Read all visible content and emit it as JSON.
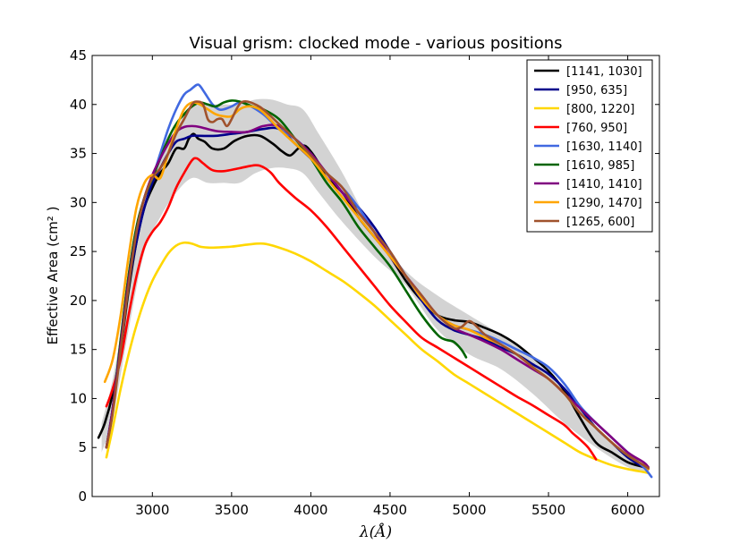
{
  "chart_data": {
    "type": "line",
    "title": "Visual grism: clocked mode - various positions",
    "xlabel": "λ(Å)",
    "ylabel": "Effective Area (cm² )",
    "xlim": [
      2620,
      6200
    ],
    "ylim": [
      0,
      45
    ],
    "x_ticks": [
      "3000",
      "3500",
      "4000",
      "4500",
      "5000",
      "5500",
      "6000"
    ],
    "y_ticks": [
      "0",
      "5",
      "10",
      "15",
      "20",
      "25",
      "30",
      "35",
      "40",
      "45"
    ],
    "legend_position": "top-right",
    "band": {
      "color": "#d3d3d3",
      "x": [
        2680,
        2750,
        2850,
        2950,
        3050,
        3150,
        3250,
        3350,
        3450,
        3550,
        3650,
        3750,
        3850,
        3950,
        4050,
        4200,
        4400,
        4600,
        4800,
        5000,
        5200,
        5400,
        5600,
        5800,
        6000,
        6130
      ],
      "upper": [
        7.5,
        12,
        21,
        29.5,
        35,
        37.5,
        40,
        40,
        40,
        40,
        40.5,
        40.5,
        40,
        39.5,
        37,
        33,
        27,
        23,
        20.5,
        18.5,
        16.5,
        14,
        11,
        7,
        4,
        3
      ],
      "lower": [
        4.5,
        8,
        17,
        25,
        28.5,
        31,
        32.5,
        32,
        32,
        32,
        33,
        33.5,
        33.5,
        33,
        31,
        28,
        24.5,
        21.5,
        17,
        14.5,
        13,
        10.5,
        7.5,
        5,
        3,
        2.5
      ]
    },
    "series": [
      {
        "name": "[1141, 1030]",
        "color": "#000000",
        "x": [
          2660,
          2700,
          2750,
          2800,
          2850,
          2900,
          2950,
          3000,
          3050,
          3100,
          3150,
          3200,
          3230,
          3260,
          3290,
          3330,
          3380,
          3450,
          3520,
          3600,
          3680,
          3760,
          3820,
          3870,
          3920,
          3960,
          4000,
          4050,
          4100,
          4200,
          4300,
          4400,
          4500,
          4600,
          4700,
          4800,
          4900,
          5000,
          5100,
          5200,
          5300,
          5400,
          5500,
          5600,
          5700,
          5800,
          5900,
          6000,
          6100,
          6130
        ],
        "y": [
          6,
          7.5,
          10.5,
          15,
          21,
          26,
          29.5,
          31.5,
          33,
          34,
          35.5,
          35.5,
          36.5,
          37,
          36.5,
          36.2,
          35.5,
          35.5,
          36.3,
          36.8,
          36.8,
          36,
          35.2,
          34.8,
          35.5,
          35.8,
          35.2,
          34,
          32.5,
          31,
          28.5,
          26.5,
          24.5,
          22,
          20,
          18.5,
          18,
          17.8,
          17.2,
          16.5,
          15.5,
          14.2,
          12.8,
          10.8,
          8,
          5.5,
          4.5,
          3.5,
          3,
          2.8
        ]
      },
      {
        "name": "[950, 635]",
        "color": "#00008b",
        "x": [
          2710,
          2750,
          2800,
          2850,
          2900,
          2950,
          3000,
          3050,
          3100,
          3150,
          3200,
          3250,
          3300,
          3400,
          3500,
          3600,
          3700,
          3800,
          3900,
          4000,
          4100,
          4200,
          4300,
          4400,
          4500,
          4600,
          4700,
          4800,
          4900,
          5000,
          5100,
          5200,
          5300,
          5400,
          5500,
          5600,
          5700,
          5800,
          5900,
          6000,
          6100,
          6130
        ],
        "y": [
          5,
          9,
          15,
          21.5,
          26,
          29.5,
          32,
          33.5,
          35,
          36.2,
          36.5,
          36.8,
          36.8,
          36.8,
          37,
          37.2,
          37.5,
          37.5,
          36,
          34.5,
          33,
          31,
          29.5,
          27.5,
          25,
          22.5,
          20,
          18,
          17,
          16.5,
          16,
          15.2,
          14.5,
          13.5,
          12.5,
          11,
          9,
          7,
          5.5,
          4,
          3,
          2.8
        ]
      },
      {
        "name": "[800, 1220]",
        "color": "#ffd700",
        "x": [
          2710,
          2750,
          2800,
          2850,
          2900,
          2950,
          3000,
          3050,
          3100,
          3150,
          3200,
          3250,
          3300,
          3350,
          3400,
          3500,
          3600,
          3700,
          3800,
          3900,
          4000,
          4100,
          4200,
          4300,
          4400,
          4500,
          4600,
          4700,
          4800,
          4900,
          5000,
          5100,
          5200,
          5300,
          5400,
          5500,
          5600,
          5700,
          5800,
          5900,
          6000,
          6100,
          6130
        ],
        "y": [
          4,
          7,
          11,
          14.5,
          17.5,
          20,
          22,
          23.5,
          24.8,
          25.6,
          25.9,
          25.8,
          25.5,
          25.4,
          25.4,
          25.5,
          25.7,
          25.8,
          25.4,
          24.8,
          24,
          23,
          22,
          20.8,
          19.5,
          18,
          16.5,
          15,
          13.8,
          12.5,
          11.5,
          10.5,
          9.5,
          8.5,
          7.5,
          6.5,
          5.5,
          4.5,
          3.8,
          3.2,
          2.8,
          2.5,
          2.4
        ]
      },
      {
        "name": "[760, 950]",
        "color": "#ff0000",
        "x": [
          2710,
          2750,
          2800,
          2850,
          2900,
          2950,
          3000,
          3050,
          3100,
          3150,
          3200,
          3250,
          3280,
          3320,
          3380,
          3450,
          3550,
          3650,
          3700,
          3750,
          3800,
          3900,
          4000,
          4100,
          4200,
          4300,
          4400,
          4500,
          4600,
          4700,
          4800,
          4900,
          5000,
          5100,
          5200,
          5300,
          5400,
          5500,
          5600,
          5650,
          5700,
          5750,
          5800
        ],
        "y": [
          9.2,
          11,
          14,
          18.5,
          22.5,
          25.5,
          27,
          28,
          29.5,
          31.5,
          33,
          34.3,
          34.5,
          34,
          33.3,
          33.2,
          33.5,
          33.8,
          33.6,
          33,
          32,
          30.5,
          29.2,
          27.5,
          25.5,
          23.5,
          21.5,
          19.5,
          17.8,
          16.2,
          15.2,
          14.2,
          13.2,
          12.2,
          11.2,
          10.2,
          9.3,
          8.3,
          7.3,
          6.5,
          5.8,
          5,
          3.8
        ]
      },
      {
        "name": "[1630, 1140]",
        "color": "#4169e1",
        "x": [
          2710,
          2750,
          2800,
          2850,
          2900,
          2950,
          3000,
          3050,
          3100,
          3150,
          3200,
          3240,
          3280,
          3300,
          3330,
          3380,
          3420,
          3450,
          3500,
          3550,
          3600,
          3700,
          3800,
          3900,
          4000,
          4100,
          4200,
          4300,
          4400,
          4500,
          4600,
          4700,
          4800,
          4900,
          5000,
          5100,
          5200,
          5300,
          5400,
          5500,
          5600,
          5700,
          5800,
          5900,
          6000,
          6100,
          6150
        ],
        "y": [
          5,
          9,
          16,
          22.5,
          27.5,
          30.5,
          32.5,
          35,
          37.5,
          39.5,
          41,
          41.5,
          42,
          41.9,
          41.2,
          40,
          39.5,
          39.5,
          39.8,
          40.2,
          40,
          39,
          37.5,
          36.5,
          35,
          33,
          31.5,
          29.5,
          27,
          24.5,
          22.5,
          20.2,
          18.5,
          17.5,
          17,
          16.5,
          15.8,
          15,
          14.2,
          13.2,
          11.5,
          9.2,
          7.5,
          6,
          4.5,
          3,
          2
        ]
      },
      {
        "name": "[1610, 985]",
        "color": "#006400",
        "x": [
          2710,
          2750,
          2800,
          2850,
          2900,
          2950,
          3000,
          3050,
          3100,
          3150,
          3200,
          3250,
          3300,
          3350,
          3400,
          3450,
          3500,
          3550,
          3600,
          3650,
          3700,
          3800,
          3900,
          4000,
          4100,
          4200,
          4300,
          4400,
          4500,
          4600,
          4700,
          4800,
          4850,
          4900,
          4950,
          4980
        ],
        "y": [
          5,
          9,
          16,
          22.5,
          27.5,
          30.5,
          32.5,
          34.5,
          36.5,
          38,
          39,
          39.8,
          40.2,
          40,
          39.8,
          40.2,
          40.4,
          40.3,
          40,
          39.7,
          39.5,
          38.5,
          36.5,
          34.5,
          32,
          30,
          27.5,
          25.5,
          23.5,
          21,
          18.5,
          16.5,
          16,
          15.8,
          15,
          14.2
        ]
      },
      {
        "name": "[1410, 1410]",
        "color": "#800080",
        "x": [
          2710,
          2750,
          2800,
          2850,
          2900,
          2950,
          3000,
          3050,
          3100,
          3150,
          3200,
          3250,
          3300,
          3400,
          3500,
          3600,
          3700,
          3800,
          3900,
          4000,
          4100,
          4200,
          4300,
          4400,
          4500,
          4600,
          4700,
          4800,
          4900,
          5000,
          5100,
          5200,
          5300,
          5400,
          5500,
          5600,
          5700,
          5800,
          5900,
          6000,
          6100,
          6130
        ],
        "y": [
          5,
          9,
          15.5,
          22,
          27,
          30.5,
          32.8,
          34.5,
          36,
          37.2,
          37.7,
          37.8,
          37.7,
          37.3,
          37.2,
          37.2,
          37.8,
          37.8,
          36.5,
          35,
          33,
          31,
          29,
          27,
          24.5,
          22.5,
          20.5,
          18.5,
          17.2,
          16.5,
          15.8,
          15,
          14,
          13,
          12,
          10.5,
          9,
          7.5,
          6,
          4.5,
          3.5,
          3
        ]
      },
      {
        "name": "[1290, 1470]",
        "color": "#ffa500",
        "x": [
          2700,
          2750,
          2800,
          2850,
          2900,
          2950,
          3000,
          3050,
          3100,
          3150,
          3200,
          3250,
          3300,
          3350,
          3400,
          3450,
          3500,
          3550,
          3600,
          3650,
          3700,
          3800,
          3900,
          4000,
          4100,
          4200,
          4300,
          4400,
          4500,
          4600,
          4700,
          4800,
          4900,
          5000,
          5100,
          5200,
          5300,
          5400,
          5500,
          5600,
          5700,
          5800,
          5900,
          6000,
          6100,
          6130
        ],
        "y": [
          11.7,
          14,
          18.5,
          24.5,
          29.5,
          32,
          32.8,
          32.5,
          35,
          37.5,
          39.5,
          40.2,
          40,
          39.5,
          39,
          38.8,
          38.8,
          39.5,
          39.8,
          39.7,
          39.2,
          37.5,
          36,
          34.5,
          32.5,
          30.5,
          28.5,
          26.5,
          24.5,
          22.5,
          20.2,
          18.5,
          17.5,
          17,
          16.2,
          15.5,
          14.5,
          13.2,
          12,
          10.5,
          8.5,
          7,
          5.5,
          4.2,
          3.2,
          2.8
        ]
      },
      {
        "name": "[1265, 600]",
        "color": "#a0522d",
        "x": [
          2710,
          2750,
          2800,
          2850,
          2900,
          2950,
          3000,
          3050,
          3100,
          3150,
          3200,
          3250,
          3280,
          3320,
          3350,
          3380,
          3410,
          3440,
          3470,
          3500,
          3530,
          3560,
          3600,
          3650,
          3700,
          3800,
          3900,
          4000,
          4100,
          4200,
          4300,
          4400,
          4500,
          4600,
          4700,
          4800,
          4900,
          4950,
          5000,
          5050,
          5100,
          5200,
          5300,
          5400,
          5500,
          5600,
          5700,
          5800,
          5900,
          6000,
          6100,
          6130
        ],
        "y": [
          5,
          8.5,
          15,
          21.5,
          27,
          30.5,
          32.5,
          33.5,
          35,
          37,
          38.5,
          40,
          40.3,
          40,
          38.5,
          38.2,
          38.5,
          38.5,
          37.8,
          38.5,
          39.5,
          40.2,
          40.3,
          40,
          39.5,
          38,
          36.5,
          34.8,
          33,
          31.5,
          29,
          27,
          25,
          22.5,
          20.5,
          18.5,
          17.2,
          17.3,
          17.9,
          17.3,
          16.5,
          15.5,
          14.5,
          13.2,
          12,
          10.5,
          8.5,
          7,
          5.5,
          4.2,
          3.2,
          2.9
        ]
      }
    ]
  }
}
